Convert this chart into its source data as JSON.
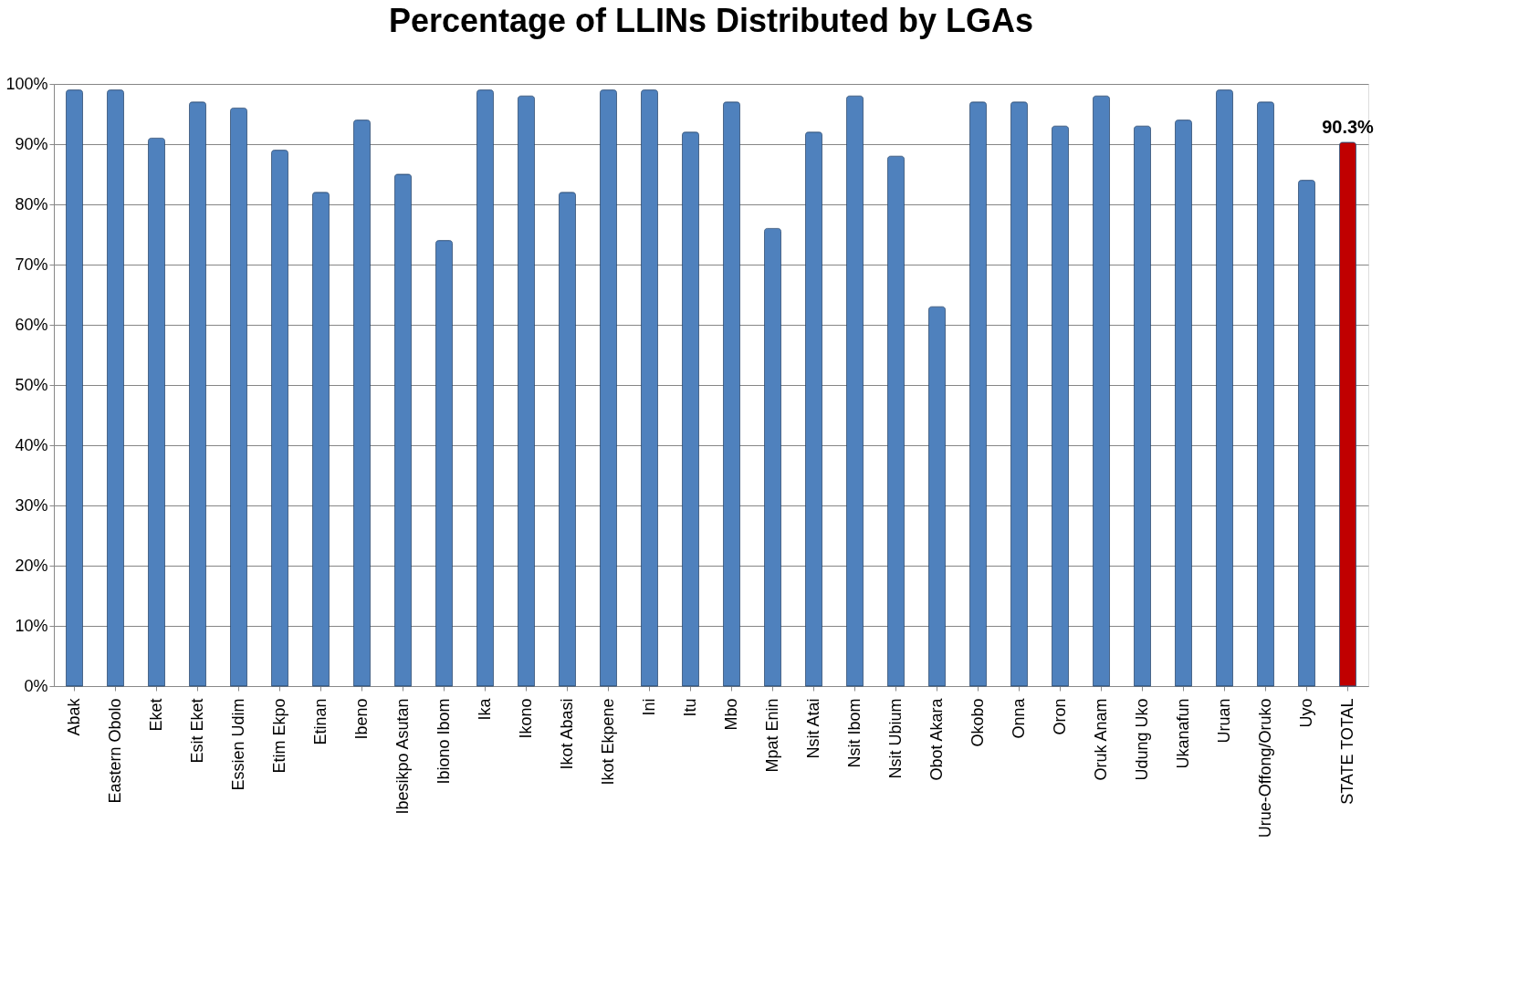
{
  "chart_data": {
    "type": "bar",
    "title": "Percentage of LLINs Distributed  by LGAs",
    "categories": [
      "Abak",
      "Eastern Obolo",
      "Eket",
      "Esit Eket",
      "Essien Udim",
      "Etim Ekpo",
      "Etinan",
      "Ibeno",
      "Ibesikpo Asutan",
      "Ibiono Ibom",
      "Ika",
      "Ikono",
      "Ikot Abasi",
      "Ikot Ekpene",
      "Ini",
      "Itu",
      "Mbo",
      "Mpat Enin",
      "Nsit Atai",
      "Nsit Ibom",
      "Nsit Ubium",
      "Obot Akara",
      "Okobo",
      "Onna",
      "Oron",
      "Oruk Anam",
      "Udung Uko",
      "Ukanafun",
      "Uruan",
      "Urue-Offong/Oruko",
      "Uyo",
      "STATE TOTAL"
    ],
    "values": [
      99,
      99,
      91,
      97,
      96,
      89,
      82,
      94,
      85,
      74,
      99,
      98,
      82,
      99,
      99,
      92,
      97,
      76,
      92,
      98,
      88,
      63,
      97,
      97,
      93,
      98,
      93,
      94,
      99,
      97,
      84,
      90.3
    ],
    "colors": [
      "#4f81bd",
      "#4f81bd",
      "#4f81bd",
      "#4f81bd",
      "#4f81bd",
      "#4f81bd",
      "#4f81bd",
      "#4f81bd",
      "#4f81bd",
      "#4f81bd",
      "#4f81bd",
      "#4f81bd",
      "#4f81bd",
      "#4f81bd",
      "#4f81bd",
      "#4f81bd",
      "#4f81bd",
      "#4f81bd",
      "#4f81bd",
      "#4f81bd",
      "#4f81bd",
      "#4f81bd",
      "#4f81bd",
      "#4f81bd",
      "#4f81bd",
      "#4f81bd",
      "#4f81bd",
      "#4f81bd",
      "#4f81bd",
      "#4f81bd",
      "#4f81bd",
      "#c00000"
    ],
    "value_labels": [
      null,
      null,
      null,
      null,
      null,
      null,
      null,
      null,
      null,
      null,
      null,
      null,
      null,
      null,
      null,
      null,
      null,
      null,
      null,
      null,
      null,
      null,
      null,
      null,
      null,
      null,
      null,
      null,
      null,
      null,
      null,
      "90.3%"
    ],
    "ylim": [
      0,
      100
    ],
    "yticks": [
      {
        "value": 0,
        "label": "0%"
      },
      {
        "value": 10,
        "label": "10%"
      },
      {
        "value": 20,
        "label": "20%"
      },
      {
        "value": 30,
        "label": "30%"
      },
      {
        "value": 40,
        "label": "40%"
      },
      {
        "value": 50,
        "label": "50%"
      },
      {
        "value": 60,
        "label": "60%"
      },
      {
        "value": 70,
        "label": "70%"
      },
      {
        "value": 80,
        "label": "80%"
      },
      {
        "value": 90,
        "label": "90%"
      },
      {
        "value": 100,
        "label": "100%"
      }
    ],
    "grid": "y"
  }
}
